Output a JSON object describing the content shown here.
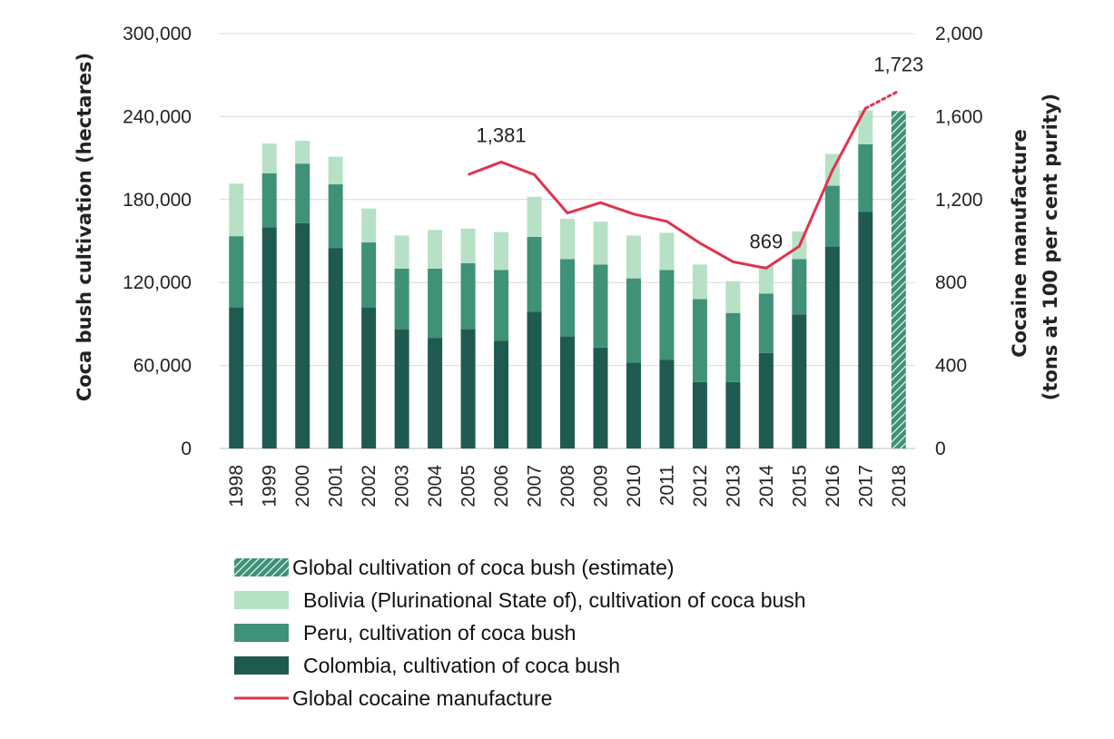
{
  "chart_data": {
    "type": "bar",
    "stacked": true,
    "categories": [
      "1998",
      "1999",
      "2000",
      "2001",
      "2002",
      "2003",
      "2004",
      "2005",
      "2006",
      "2007",
      "2008",
      "2009",
      "2010",
      "2011",
      "2012",
      "2013",
      "2014",
      "2015",
      "2016",
      "2017",
      "2018"
    ],
    "series": [
      {
        "name": "Colombia, cultivation of coca bush",
        "axis": "left",
        "color": "#1f5a50",
        "values": [
          102000,
          160000,
          163000,
          145000,
          102000,
          86000,
          80000,
          86000,
          78000,
          99000,
          81000,
          73000,
          62000,
          64000,
          48000,
          48000,
          69000,
          97000,
          146000,
          171000,
          null
        ]
      },
      {
        "name": "Peru, cultivation of coca bush",
        "axis": "left",
        "color": "#3f9178",
        "values": [
          51500,
          39000,
          43000,
          46000,
          47000,
          44000,
          50000,
          48000,
          51000,
          54000,
          56000,
          60000,
          61000,
          65000,
          60000,
          50000,
          43000,
          40000,
          44000,
          49000,
          null
        ]
      },
      {
        "name": "Bolivia (Plurinational State of), cultivation of coca bush",
        "axis": "left",
        "color": "#b6e1c5",
        "values": [
          38000,
          21500,
          16500,
          20000,
          24500,
          24000,
          28000,
          25000,
          27500,
          29000,
          29000,
          31000,
          31000,
          27000,
          25000,
          23000,
          20000,
          20000,
          23000,
          24500,
          null
        ]
      },
      {
        "name": "Global cultivation of coca bush (estimate)",
        "axis": "left",
        "color": "#3f9178",
        "pattern": "hatched",
        "values": [
          null,
          null,
          null,
          null,
          null,
          null,
          null,
          null,
          null,
          null,
          null,
          null,
          null,
          null,
          null,
          null,
          null,
          null,
          null,
          null,
          244000
        ]
      },
      {
        "name": "Global cocaine manufacture",
        "axis": "right",
        "type": "line",
        "color": "#e0334f",
        "values": [
          null,
          null,
          null,
          null,
          null,
          null,
          null,
          1320,
          1381,
          1320,
          1135,
          1185,
          1130,
          1095,
          990,
          900,
          869,
          975,
          1340,
          1640,
          1723
        ]
      }
    ],
    "annotations": [
      {
        "year": "2006",
        "text": "1,381"
      },
      {
        "year": "2014",
        "text": "869"
      },
      {
        "year": "2018",
        "text": "1,723"
      }
    ],
    "ylabel": "Coca bush cultivation (hectares)",
    "y2label_line1": "Cocaine manufacture",
    "y2label_line2": "(tons at 100 per cent purity)",
    "ylim": [
      0,
      300000
    ],
    "y2lim": [
      0,
      2000
    ],
    "yticks": [
      "0",
      "60,000",
      "120,000",
      "180,000",
      "240,000",
      "300,000"
    ],
    "y2ticks": [
      "0",
      "400",
      "800",
      "1,200",
      "1,600",
      "2,000"
    ],
    "grid": true,
    "legend_position": "bottom",
    "legend": [
      {
        "label": "Global cultivation of coca bush (estimate)",
        "kind": "hatched",
        "color": "#3f9178"
      },
      {
        "label": "Bolivia (Plurinational State of), cultivation of coca bush",
        "kind": "box",
        "color": "#b6e1c5"
      },
      {
        "label": "Peru, cultivation of coca bush",
        "kind": "box",
        "color": "#3f9178"
      },
      {
        "label": "Colombia, cultivation of coca bush",
        "kind": "box",
        "color": "#1f5a50"
      },
      {
        "label": "Global cocaine manufacture",
        "kind": "line",
        "color": "#e0334f"
      }
    ]
  }
}
